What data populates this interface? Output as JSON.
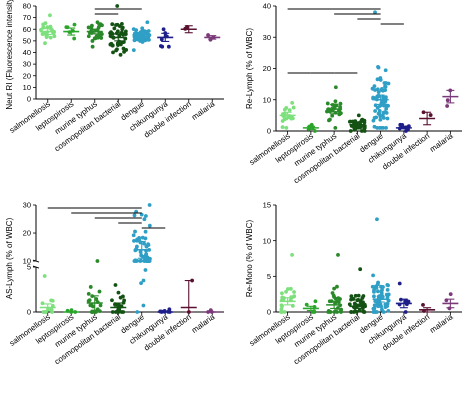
{
  "categories": [
    "salmonellosis",
    "leptospirosis",
    "murine typhus",
    "cosmopolitan bacterial",
    "dengue",
    "chikungunya",
    "double infection",
    "malaria"
  ],
  "colors": [
    "#7de07d",
    "#2aa52a",
    "#2a8a2a",
    "#145214",
    "#2f9fc6",
    "#1f1f8a",
    "#5a1030",
    "#7a3a7a"
  ],
  "chart_data": [
    {
      "type": "scatter",
      "title": "",
      "ylabel": "Neut RI (Fluorescence intensity)",
      "ylim": [
        0,
        80
      ],
      "yticks": [
        0,
        10,
        20,
        30,
        40,
        50,
        60,
        70,
        80
      ],
      "ytick_labels": [
        "0",
        "10",
        "20",
        "30",
        "40",
        "50",
        "60",
        "70",
        "80"
      ],
      "broken_axis": false,
      "groups": [
        {
          "name": "salmonellosis",
          "mean": 58,
          "error": 2.5,
          "n": 25,
          "spread": 5,
          "min": 48,
          "max": 72
        },
        {
          "name": "leptospirosis",
          "mean": 58,
          "error": 3,
          "n": 6,
          "spread": 4,
          "min": 52,
          "max": 64
        },
        {
          "name": "murine typhus",
          "mean": 58,
          "error": 2,
          "n": 30,
          "spread": 5,
          "min": 45,
          "max": 66
        },
        {
          "name": "cosmopolitan bacterial",
          "mean": 53,
          "error": 3,
          "n": 45,
          "spread": 8,
          "min": 38,
          "max": 80
        },
        {
          "name": "dengue",
          "mean": 54,
          "error": 1.5,
          "n": 55,
          "spread": 4,
          "min": 42,
          "max": 66
        },
        {
          "name": "chikungunya",
          "mean": 53,
          "error": 3.5,
          "n": 8,
          "spread": 5,
          "min": 45,
          "max": 60
        },
        {
          "name": "double infection",
          "mean": 60,
          "error": 3,
          "n": 2,
          "spread": 3,
          "min": 57,
          "max": 62
        },
        {
          "name": "malaria",
          "mean": 53,
          "error": 1.5,
          "n": 3,
          "spread": 1.5,
          "min": 51,
          "max": 55
        }
      ],
      "significance": [
        [
          2,
          4
        ],
        [
          2,
          3
        ]
      ]
    },
    {
      "type": "scatter",
      "title": "",
      "ylabel": "Re-Lymph (% of WBC)",
      "ylim": [
        0,
        40
      ],
      "yticks": [
        0,
        10,
        20,
        30,
        40
      ],
      "ytick_labels": [
        "0",
        "10",
        "20",
        "30",
        "40"
      ],
      "broken_axis": false,
      "groups": [
        {
          "name": "salmonellosis",
          "mean": 5,
          "error": 1,
          "n": 20,
          "spread": 2,
          "min": 1,
          "max": 9
        },
        {
          "name": "leptospirosis",
          "mean": 1,
          "error": 0.5,
          "n": 6,
          "spread": 0.6,
          "min": 0,
          "max": 2
        },
        {
          "name": "murine typhus",
          "mean": 7,
          "error": 1.5,
          "n": 28,
          "spread": 3,
          "min": 1,
          "max": 14
        },
        {
          "name": "cosmopolitan bacterial",
          "mean": 2,
          "error": 0.5,
          "n": 38,
          "spread": 1.3,
          "min": 0,
          "max": 5
        },
        {
          "name": "dengue",
          "mean": 10,
          "error": 1.5,
          "n": 70,
          "spread": 7,
          "min": 1,
          "max": 38
        },
        {
          "name": "chikungunya",
          "mean": 1,
          "error": 0.3,
          "n": 10,
          "spread": 0.5,
          "min": 0,
          "max": 2
        },
        {
          "name": "double infection",
          "mean": 4,
          "error": 2,
          "n": 2,
          "spread": 2,
          "min": 1,
          "max": 6
        },
        {
          "name": "malaria",
          "mean": 11,
          "error": 2,
          "n": 3,
          "spread": 2,
          "min": 8,
          "max": 13
        }
      ],
      "significance": [
        [
          0,
          4
        ],
        [
          2,
          4
        ],
        [
          3,
          4
        ],
        [
          4,
          5
        ],
        [
          0,
          1
        ],
        [
          1,
          2
        ],
        [
          2,
          3
        ]
      ]
    },
    {
      "type": "scatter",
      "title": "",
      "ylabel": "AS-Lymph (% of WBC)",
      "ylim": [
        0,
        30
      ],
      "yticks": [
        0,
        5,
        10,
        20,
        30
      ],
      "ytick_labels": [
        "0",
        "5",
        "10",
        "20",
        "30"
      ],
      "broken_axis": true,
      "break_low": 5,
      "break_high": 10,
      "groups": [
        {
          "name": "salmonellosis",
          "mean": 0.5,
          "error": 0.4,
          "n": 12,
          "spread": 1,
          "min": 0,
          "max": 4
        },
        {
          "name": "leptospirosis",
          "mean": 0,
          "error": 0,
          "n": 4,
          "spread": 0.1,
          "min": 0,
          "max": 0.2
        },
        {
          "name": "murine typhus",
          "mean": 1,
          "error": 0.8,
          "n": 20,
          "spread": 1.5,
          "min": 0,
          "max": 6
        },
        {
          "name": "cosmopolitan bacterial",
          "mean": 0.5,
          "error": 0.5,
          "n": 25,
          "spread": 1,
          "min": 0,
          "max": 3
        },
        {
          "name": "dengue",
          "mean": 14,
          "error": 3,
          "n": 60,
          "spread": 8,
          "min": 0,
          "max": 30
        },
        {
          "name": "chikungunya",
          "mean": 0,
          "error": 0,
          "n": 8,
          "spread": 0.1,
          "min": 0,
          "max": 0.3
        },
        {
          "name": "double infection",
          "mean": 0.5,
          "error": 3,
          "n": 2,
          "spread": 1,
          "min": 0,
          "max": 3.5
        },
        {
          "name": "malaria",
          "mean": 0,
          "error": 0,
          "n": 3,
          "spread": 0.1,
          "min": 0,
          "max": 0.2
        }
      ],
      "significance": [
        [
          0,
          4
        ],
        [
          1,
          4
        ],
        [
          2,
          4
        ],
        [
          3,
          4
        ],
        [
          4,
          5
        ]
      ]
    },
    {
      "type": "scatter",
      "title": "",
      "ylabel": "Re-Mono (% of WBC)",
      "ylim": [
        0,
        15
      ],
      "yticks": [
        0,
        5,
        10,
        15
      ],
      "ytick_labels": [
        "0",
        "5",
        "10",
        "15"
      ],
      "broken_axis": false,
      "groups": [
        {
          "name": "salmonellosis",
          "mean": 1.5,
          "error": 0.5,
          "n": 22,
          "spread": 1.5,
          "min": 0,
          "max": 8
        },
        {
          "name": "leptospirosis",
          "mean": 0.5,
          "error": 0.3,
          "n": 6,
          "spread": 0.5,
          "min": 0,
          "max": 1.5
        },
        {
          "name": "murine typhus",
          "mean": 1,
          "error": 0.5,
          "n": 28,
          "spread": 1.5,
          "min": 0,
          "max": 8
        },
        {
          "name": "cosmopolitan bacterial",
          "mean": 0.8,
          "error": 0.3,
          "n": 40,
          "spread": 1.3,
          "min": 0,
          "max": 6
        },
        {
          "name": "dengue",
          "mean": 1.8,
          "error": 0.4,
          "n": 65,
          "spread": 1.7,
          "min": 0,
          "max": 13
        },
        {
          "name": "chikungunya",
          "mean": 1.2,
          "error": 0.6,
          "n": 8,
          "spread": 1,
          "min": 0,
          "max": 4
        },
        {
          "name": "double infection",
          "mean": 0.3,
          "error": 0.3,
          "n": 2,
          "spread": 0.3,
          "min": 0,
          "max": 1
        },
        {
          "name": "malaria",
          "mean": 1.2,
          "error": 0.6,
          "n": 3,
          "spread": 0.6,
          "min": 0.5,
          "max": 2.5
        }
      ],
      "significance": []
    }
  ]
}
